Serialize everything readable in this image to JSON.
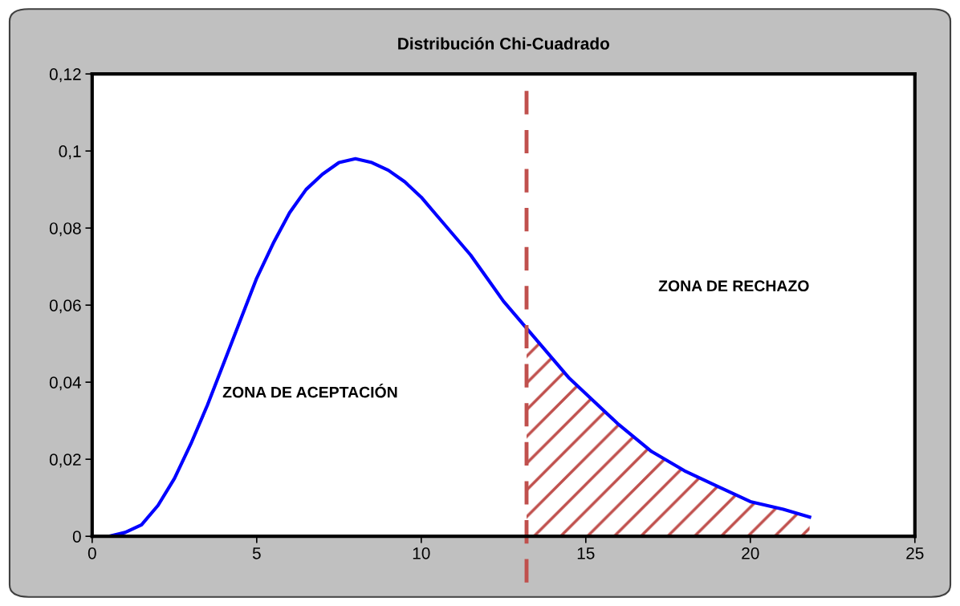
{
  "chart_data": {
    "type": "line",
    "title": "Distribución Chi-Cuadrado",
    "xlim": [
      0,
      25
    ],
    "xticks": [
      0,
      5,
      10,
      15,
      20,
      25
    ],
    "ylim": [
      0,
      0.12
    ],
    "yticks": [
      {
        "value": 0,
        "label": "0"
      },
      {
        "value": 0.02,
        "label": "0,02"
      },
      {
        "value": 0.04,
        "label": "0,04"
      },
      {
        "value": 0.06,
        "label": "0,06"
      },
      {
        "value": 0.08,
        "label": "0,08"
      },
      {
        "value": 0.1,
        "label": "0,1"
      },
      {
        "value": 0.12,
        "label": "0,12"
      }
    ],
    "grid": false,
    "legend": false,
    "marker": "none",
    "line_style": "solid",
    "series": [
      {
        "color": "#0000ff",
        "x": [
          0,
          0.5,
          1,
          1.5,
          2,
          2.5,
          3,
          3.5,
          4,
          4.5,
          5,
          5.5,
          6,
          6.5,
          7,
          7.5,
          8,
          8.5,
          9,
          9.5,
          10,
          10.5,
          11,
          11.5,
          12,
          12.5,
          13,
          13.5,
          14,
          14.5,
          15,
          16,
          17,
          18,
          19,
          20,
          21,
          21.8
        ],
        "values": [
          0,
          0.0,
          0.001,
          0.003,
          0.008,
          0.015,
          0.024,
          0.034,
          0.045,
          0.056,
          0.067,
          0.076,
          0.084,
          0.09,
          0.094,
          0.097,
          0.098,
          0.097,
          0.095,
          0.092,
          0.088,
          0.083,
          0.078,
          0.073,
          0.067,
          0.061,
          0.056,
          0.051,
          0.046,
          0.041,
          0.037,
          0.029,
          0.022,
          0.017,
          0.013,
          0.009,
          0.007,
          0.005
        ]
      },
      {
        "type": "area",
        "color": "#c0504d",
        "x": [
          13.2,
          13.5,
          14,
          14.5,
          15,
          16,
          17,
          18,
          19,
          20,
          21,
          21.8
        ],
        "values": [
          0.054,
          0.051,
          0.046,
          0.041,
          0.037,
          0.029,
          0.022,
          0.017,
          0.013,
          0.009,
          0.007,
          0.005
        ]
      }
    ],
    "ref_lines": [
      {
        "axis": "x",
        "value": 13.2,
        "color": "#c0504d",
        "line_style": "dashed"
      }
    ],
    "annotations": [
      "ZONA DE ACEPTACIÓN",
      "ZONA DE RECHAZO"
    ]
  }
}
